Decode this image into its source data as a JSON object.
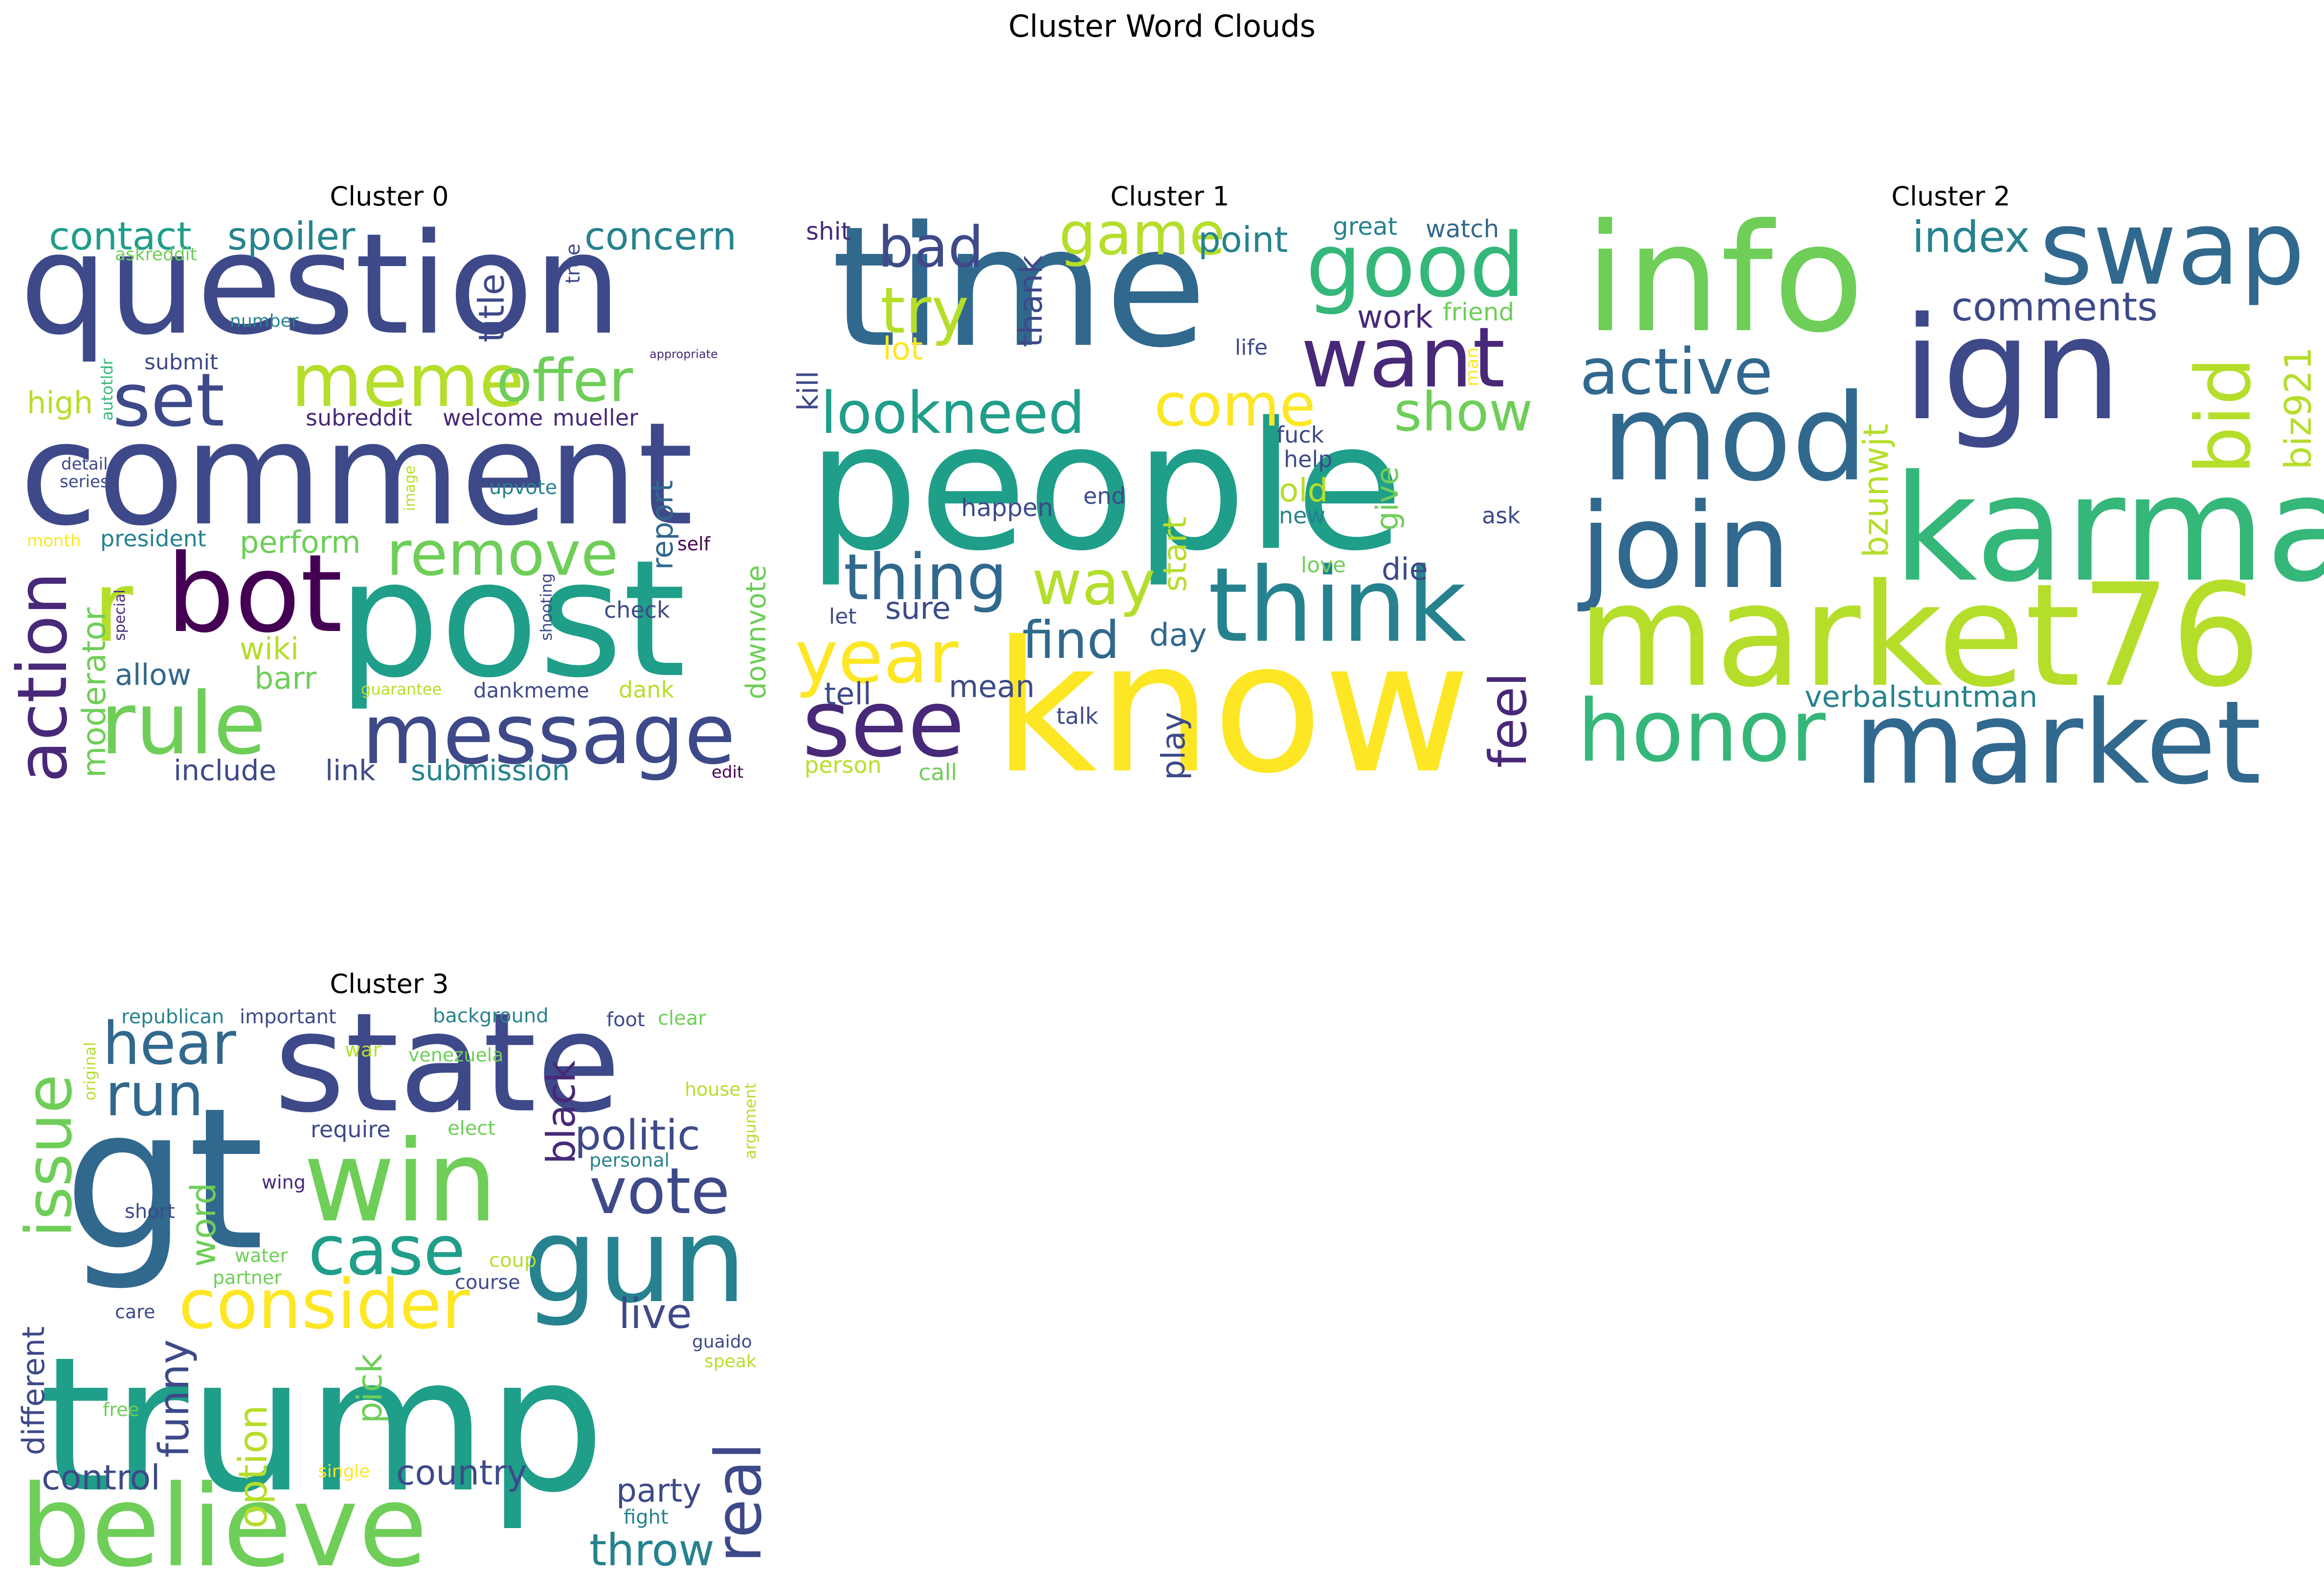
{
  "figure": {
    "title": "Cluster Word Clouds"
  },
  "palette": [
    "#440154",
    "#482878",
    "#3e4989",
    "#31688e",
    "#26828e",
    "#1f9e89",
    "#35b779",
    "#6ece58",
    "#b5de2b",
    "#fde725"
  ],
  "clusters": [
    {
      "title": "Cluster 0",
      "words": [
        {
          "text": "question",
          "color": "#3e4989"
        },
        {
          "text": "comment",
          "color": "#3e4989"
        },
        {
          "text": "post",
          "color": "#1f9e89"
        },
        {
          "text": "message",
          "color": "#3e4989"
        },
        {
          "text": "rule",
          "color": "#6ece58"
        },
        {
          "text": "bot",
          "color": "#440154"
        },
        {
          "text": "meme",
          "color": "#b5de2b"
        },
        {
          "text": "offer",
          "color": "#6ece58"
        },
        {
          "text": "set",
          "color": "#3e4989"
        },
        {
          "text": "r",
          "color": "#b5de2b"
        },
        {
          "text": "remove",
          "color": "#6ece58"
        },
        {
          "text": "action",
          "color": "#482878"
        },
        {
          "text": "contact",
          "color": "#1f9e89"
        },
        {
          "text": "spoiler",
          "color": "#26828e"
        },
        {
          "text": "concern",
          "color": "#26828e"
        },
        {
          "text": "title",
          "color": "#3e4989"
        },
        {
          "text": "moderator",
          "color": "#6ece58"
        },
        {
          "text": "report",
          "color": "#31688e"
        },
        {
          "text": "downvote",
          "color": "#6ece58"
        },
        {
          "text": "perform",
          "color": "#6ece58"
        },
        {
          "text": "wiki",
          "color": "#b5de2b"
        },
        {
          "text": "barr",
          "color": "#6ece58"
        },
        {
          "text": "allow",
          "color": "#31688e"
        },
        {
          "text": "include",
          "color": "#3e4989"
        },
        {
          "text": "link",
          "color": "#3e4989"
        },
        {
          "text": "submission",
          "color": "#26828e"
        },
        {
          "text": "high",
          "color": "#b5de2b"
        },
        {
          "text": "subreddit",
          "color": "#482878"
        },
        {
          "text": "welcome",
          "color": "#482878"
        },
        {
          "text": "mueller",
          "color": "#482878"
        },
        {
          "text": "president",
          "color": "#26828e"
        },
        {
          "text": "submit",
          "color": "#3e4989"
        },
        {
          "text": "upvote",
          "color": "#26828e"
        },
        {
          "text": "check",
          "color": "#3e4989"
        },
        {
          "text": "dank",
          "color": "#b5de2b"
        },
        {
          "text": "dankmeme",
          "color": "#3e4989"
        },
        {
          "text": "series",
          "color": "#3e4989"
        },
        {
          "text": "detail",
          "color": "#3e4989"
        },
        {
          "text": "number",
          "color": "#26828e"
        },
        {
          "text": "askreddit",
          "color": "#6ece58"
        },
        {
          "text": "autotldr",
          "color": "#35b779"
        },
        {
          "text": "true",
          "color": "#3e4989"
        },
        {
          "text": "appropriate",
          "color": "#482878"
        },
        {
          "text": "image",
          "color": "#b5de2b"
        },
        {
          "text": "month",
          "color": "#fde725"
        },
        {
          "text": "special",
          "color": "#482878"
        },
        {
          "text": "self",
          "color": "#440154"
        },
        {
          "text": "shooting",
          "color": "#3e4989"
        },
        {
          "text": "guarantee",
          "color": "#b5de2b"
        },
        {
          "text": "edit",
          "color": "#440154"
        }
      ]
    },
    {
      "title": "Cluster 1",
      "words": [
        {
          "text": "people",
          "color": "#1f9e89"
        },
        {
          "text": "know",
          "color": "#fde725"
        },
        {
          "text": "time",
          "color": "#31688e"
        },
        {
          "text": "think",
          "color": "#26828e"
        },
        {
          "text": "good",
          "color": "#35b779"
        },
        {
          "text": "want",
          "color": "#482878"
        },
        {
          "text": "see",
          "color": "#482878"
        },
        {
          "text": "year",
          "color": "#fde725"
        },
        {
          "text": "thing",
          "color": "#31688e"
        },
        {
          "text": "way",
          "color": "#b5de2b"
        },
        {
          "text": "lookneed",
          "color": "#1f9e89"
        },
        {
          "text": "come",
          "color": "#fde725"
        },
        {
          "text": "show",
          "color": "#6ece58"
        },
        {
          "text": "game",
          "color": "#b5de2b"
        },
        {
          "text": "bad",
          "color": "#3e4989"
        },
        {
          "text": "try",
          "color": "#b5de2b"
        },
        {
          "text": "find",
          "color": "#31688e"
        },
        {
          "text": "feel",
          "color": "#482878"
        },
        {
          "text": "point",
          "color": "#26828e"
        },
        {
          "text": "work",
          "color": "#482878"
        },
        {
          "text": "friend",
          "color": "#6ece58"
        },
        {
          "text": "great",
          "color": "#26828e"
        },
        {
          "text": "watch",
          "color": "#31688e"
        },
        {
          "text": "thank",
          "color": "#3e4989"
        },
        {
          "text": "lot",
          "color": "#fde725"
        },
        {
          "text": "shit",
          "color": "#482878"
        },
        {
          "text": "kill",
          "color": "#3e4989"
        },
        {
          "text": "life",
          "color": "#3e4989"
        },
        {
          "text": "fuck",
          "color": "#3e4989"
        },
        {
          "text": "help",
          "color": "#3e4989"
        },
        {
          "text": "old",
          "color": "#b5de2b"
        },
        {
          "text": "new",
          "color": "#26828e"
        },
        {
          "text": "give",
          "color": "#6ece58"
        },
        {
          "text": "man",
          "color": "#fde725"
        },
        {
          "text": "ask",
          "color": "#3e4989"
        },
        {
          "text": "start",
          "color": "#b5de2b"
        },
        {
          "text": "end",
          "color": "#3e4989"
        },
        {
          "text": "happen",
          "color": "#3e4989"
        },
        {
          "text": "love",
          "color": "#6ece58"
        },
        {
          "text": "die",
          "color": "#3e4989"
        },
        {
          "text": "day",
          "color": "#31688e"
        },
        {
          "text": "sure",
          "color": "#3e4989"
        },
        {
          "text": "mean",
          "color": "#3e4989"
        },
        {
          "text": "tell",
          "color": "#3e4989"
        },
        {
          "text": "let",
          "color": "#3e4989"
        },
        {
          "text": "talk",
          "color": "#3e4989"
        },
        {
          "text": "play",
          "color": "#3e4989"
        },
        {
          "text": "person",
          "color": "#b5de2b"
        },
        {
          "text": "call",
          "color": "#6ece58"
        }
      ]
    },
    {
      "title": "Cluster 2",
      "words": [
        {
          "text": "info",
          "color": "#6ece58"
        },
        {
          "text": "ign",
          "color": "#3e4989"
        },
        {
          "text": "swap",
          "color": "#31688e"
        },
        {
          "text": "mod",
          "color": "#31688e"
        },
        {
          "text": "karma",
          "color": "#35b779"
        },
        {
          "text": "join",
          "color": "#31688e"
        },
        {
          "text": "market76",
          "color": "#b5de2b"
        },
        {
          "text": "market",
          "color": "#31688e"
        },
        {
          "text": "honor",
          "color": "#35b779"
        },
        {
          "text": "active",
          "color": "#31688e"
        },
        {
          "text": "bid",
          "color": "#b5de2b"
        },
        {
          "text": "index",
          "color": "#26828e"
        },
        {
          "text": "comments",
          "color": "#3e4989"
        },
        {
          "text": "bzunwjt",
          "color": "#b5de2b"
        },
        {
          "text": "biz921",
          "color": "#b5de2b"
        },
        {
          "text": "verbalstuntman",
          "color": "#26828e"
        }
      ]
    },
    {
      "title": "Cluster 3",
      "words": [
        {
          "text": "trump",
          "color": "#1f9e89"
        },
        {
          "text": "gt",
          "color": "#31688e"
        },
        {
          "text": "state",
          "color": "#3e4989"
        },
        {
          "text": "believe",
          "color": "#6ece58"
        },
        {
          "text": "win",
          "color": "#6ece58"
        },
        {
          "text": "gun",
          "color": "#26828e"
        },
        {
          "text": "consider",
          "color": "#fde725"
        },
        {
          "text": "case",
          "color": "#1f9e89"
        },
        {
          "text": "hear",
          "color": "#31688e"
        },
        {
          "text": "run",
          "color": "#31688e"
        },
        {
          "text": "vote",
          "color": "#3e4989"
        },
        {
          "text": "issue",
          "color": "#6ece58"
        },
        {
          "text": "politic",
          "color": "#3e4989"
        },
        {
          "text": "black",
          "color": "#482878"
        },
        {
          "text": "real",
          "color": "#3e4989"
        },
        {
          "text": "live",
          "color": "#3e4989"
        },
        {
          "text": "funny",
          "color": "#3e4989"
        },
        {
          "text": "option",
          "color": "#b5de2b"
        },
        {
          "text": "pick",
          "color": "#6ece58"
        },
        {
          "text": "word",
          "color": "#6ece58"
        },
        {
          "text": "different",
          "color": "#3e4989"
        },
        {
          "text": "control",
          "color": "#3e4989"
        },
        {
          "text": "country",
          "color": "#3e4989"
        },
        {
          "text": "party",
          "color": "#3e4989"
        },
        {
          "text": "throw",
          "color": "#26828e"
        },
        {
          "text": "republican",
          "color": "#26828e"
        },
        {
          "text": "important",
          "color": "#3e4989"
        },
        {
          "text": "background",
          "color": "#26828e"
        },
        {
          "text": "foot",
          "color": "#3e4989"
        },
        {
          "text": "clear",
          "color": "#6ece58"
        },
        {
          "text": "original",
          "color": "#b5de2b"
        },
        {
          "text": "war",
          "color": "#b5de2b"
        },
        {
          "text": "venezuela",
          "color": "#6ece58"
        },
        {
          "text": "house",
          "color": "#b5de2b"
        },
        {
          "text": "argument",
          "color": "#b5de2b"
        },
        {
          "text": "require",
          "color": "#3e4989"
        },
        {
          "text": "elect",
          "color": "#6ece58"
        },
        {
          "text": "personal",
          "color": "#26828e"
        },
        {
          "text": "wing",
          "color": "#482878"
        },
        {
          "text": "short",
          "color": "#3e4989"
        },
        {
          "text": "partner",
          "color": "#6ece58"
        },
        {
          "text": "water",
          "color": "#6ece58"
        },
        {
          "text": "coup",
          "color": "#b5de2b"
        },
        {
          "text": "course",
          "color": "#3e4989"
        },
        {
          "text": "care",
          "color": "#3e4989"
        },
        {
          "text": "guaido",
          "color": "#3e4989"
        },
        {
          "text": "speak",
          "color": "#b5de2b"
        },
        {
          "text": "free",
          "color": "#6ece58"
        },
        {
          "text": "single",
          "color": "#fde725"
        },
        {
          "text": "fight",
          "color": "#26828e"
        }
      ]
    }
  ]
}
